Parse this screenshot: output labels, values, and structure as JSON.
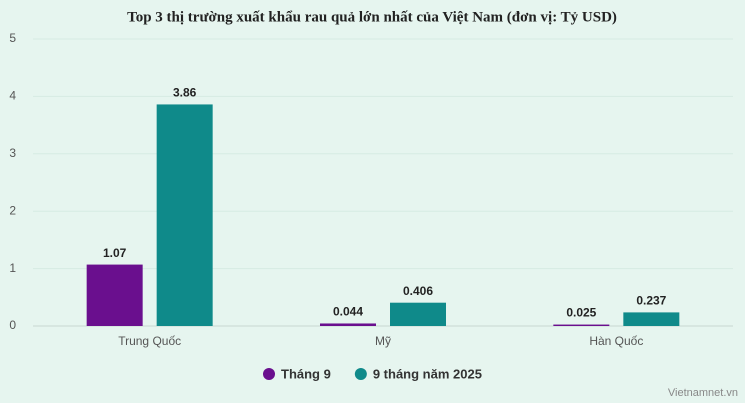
{
  "chart_data": {
    "type": "bar",
    "title": "Top 3 thị trường xuất khẩu rau quả lớn nhất của Việt Nam (đơn vị: Tỷ USD)",
    "categories": [
      "Trung Quốc",
      "Mỹ",
      "Hàn Quốc"
    ],
    "series": [
      {
        "name": "Tháng 9",
        "color": "#6a0f8e",
        "values": [
          1.07,
          0.044,
          0.025
        ]
      },
      {
        "name": "9 tháng năm 2025",
        "color": "#0f8a8a",
        "values": [
          3.86,
          0.406,
          0.237
        ]
      }
    ],
    "ylim": [
      0,
      5
    ],
    "yticks": [
      0,
      1,
      2,
      3,
      4,
      5
    ],
    "grid": true,
    "legend": "bottom",
    "source": "Vietnamnet.vn"
  }
}
